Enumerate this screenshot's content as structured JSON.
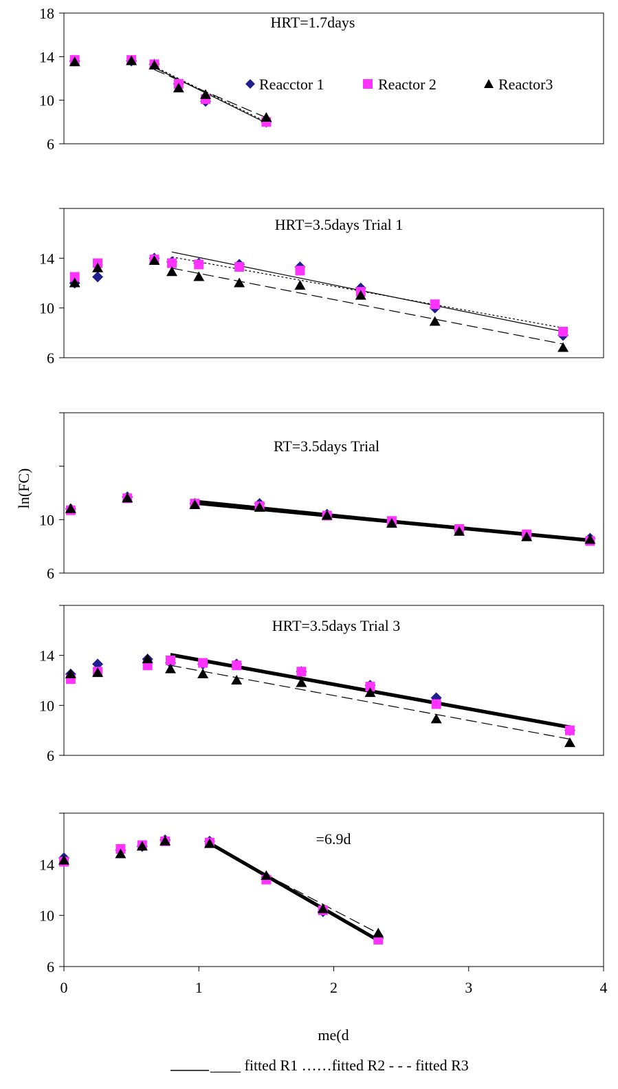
{
  "figure": {
    "ylabel": "ln(FC)",
    "xlabel": "me(d",
    "legend_markers": [
      "Reacctor 1",
      "Reactor 2",
      "Reactor3"
    ],
    "legend_lines": "____ fitted R1 ……fitted R2 - - - fitted R3",
    "colors": {
      "r1": "#1f1f8f",
      "r2": "#ff33ff",
      "r3": "#000000"
    }
  },
  "chart_data": [
    {
      "type": "scatter",
      "title": "HRT=1.7days",
      "xlim": [
        0,
        4
      ],
      "ylim": [
        6,
        18
      ],
      "yticks": [
        6,
        10,
        14,
        18
      ],
      "series": [
        {
          "name": "Reacctor 1",
          "marker": "diamond",
          "x": [
            0.08,
            0.5,
            0.67,
            0.85,
            1.05,
            1.5
          ],
          "y": [
            13.6,
            13.6,
            13.3,
            11.5,
            9.9,
            8.0
          ]
        },
        {
          "name": "Reactor 2",
          "marker": "square",
          "x": [
            0.08,
            0.5,
            0.67,
            0.85,
            1.05,
            1.5
          ],
          "y": [
            13.7,
            13.7,
            13.3,
            11.5,
            10.1,
            8.0
          ]
        },
        {
          "name": "Reactor3",
          "marker": "triangle",
          "x": [
            0.08,
            0.5,
            0.67,
            0.85,
            1.05,
            1.5
          ],
          "y": [
            13.5,
            13.6,
            13.2,
            11.1,
            10.5,
            8.4
          ]
        }
      ],
      "fits": [
        {
          "style": "solid",
          "x": [
            0.67,
            1.5
          ],
          "y": [
            13.0,
            7.9
          ]
        },
        {
          "style": "dotted",
          "x": [
            0.67,
            1.5
          ],
          "y": [
            13.1,
            8.0
          ]
        },
        {
          "style": "dashed",
          "x": [
            0.67,
            1.5
          ],
          "y": [
            12.8,
            8.4
          ]
        }
      ]
    },
    {
      "type": "scatter",
      "title": "HRT=3.5days Trial 1",
      "xlim": [
        0,
        4
      ],
      "ylim": [
        6,
        18
      ],
      "yticks": [
        6,
        10,
        14
      ],
      "series": [
        {
          "name": "Reacctor 1",
          "marker": "diamond",
          "x": [
            0.08,
            0.25,
            0.67,
            0.8,
            1.0,
            1.3,
            1.75,
            2.2,
            2.75,
            3.7
          ],
          "y": [
            12.0,
            12.5,
            14.0,
            13.7,
            13.6,
            13.5,
            13.3,
            11.6,
            10.0,
            7.8
          ]
        },
        {
          "name": "Reactor 2",
          "marker": "square",
          "x": [
            0.08,
            0.25,
            0.67,
            0.8,
            1.0,
            1.3,
            1.75,
            2.2,
            2.75,
            3.7
          ],
          "y": [
            12.5,
            13.6,
            13.9,
            13.6,
            13.5,
            13.3,
            13.0,
            11.3,
            10.3,
            8.1
          ]
        },
        {
          "name": "Reactor3",
          "marker": "triangle",
          "x": [
            0.08,
            0.25,
            0.67,
            0.8,
            1.0,
            1.3,
            1.75,
            2.2,
            2.75,
            3.7
          ],
          "y": [
            12.0,
            13.2,
            13.8,
            12.9,
            12.5,
            12.0,
            11.8,
            11.0,
            8.9,
            6.8
          ]
        }
      ],
      "fits": [
        {
          "style": "solid",
          "x": [
            0.8,
            3.7
          ],
          "y": [
            14.5,
            8.1
          ]
        },
        {
          "style": "dotted",
          "x": [
            0.8,
            3.7
          ],
          "y": [
            14.1,
            8.4
          ]
        },
        {
          "style": "dashed",
          "x": [
            0.8,
            3.7
          ],
          "y": [
            13.2,
            7.1
          ]
        }
      ]
    },
    {
      "type": "scatter",
      "title": "RT=3.5days Trial",
      "xlim": [
        0,
        4
      ],
      "ylim": [
        6,
        18
      ],
      "yticks": [
        6,
        10
      ],
      "series": [
        {
          "name": "Reacctor 1",
          "marker": "diamond",
          "x": [
            0.05,
            0.47,
            0.97,
            1.45,
            1.95,
            2.43,
            2.93,
            3.43,
            3.9
          ],
          "y": [
            10.8,
            11.7,
            11.2,
            11.2,
            10.4,
            9.8,
            9.2,
            8.8,
            8.6
          ]
        },
        {
          "name": "Reactor 2",
          "marker": "square",
          "x": [
            0.05,
            0.47,
            0.97,
            1.45,
            1.95,
            2.43,
            2.93,
            3.43,
            3.9
          ],
          "y": [
            10.7,
            11.6,
            11.2,
            11.0,
            10.3,
            9.9,
            9.3,
            8.9,
            8.4
          ]
        },
        {
          "name": "Reactor3",
          "marker": "triangle",
          "x": [
            0.05,
            0.47,
            0.97,
            1.45,
            1.95,
            2.43,
            2.93,
            3.43,
            3.9
          ],
          "y": [
            10.8,
            11.6,
            11.1,
            10.9,
            10.3,
            9.7,
            9.1,
            8.7,
            8.5
          ]
        }
      ],
      "fits": [
        {
          "style": "solid",
          "x": [
            0.97,
            3.9
          ],
          "y": [
            11.4,
            8.4
          ]
        },
        {
          "style": "solid",
          "x": [
            0.97,
            3.9
          ],
          "y": [
            11.3,
            8.5
          ]
        },
        {
          "style": "solid",
          "x": [
            0.97,
            3.9
          ],
          "y": [
            11.2,
            8.4
          ]
        }
      ]
    },
    {
      "type": "scatter",
      "title": "HRT=3.5days Trial 3",
      "xlim": [
        0,
        4
      ],
      "ylim": [
        6,
        18
      ],
      "yticks": [
        6,
        10,
        14
      ],
      "series": [
        {
          "name": "Reacctor 1",
          "marker": "diamond",
          "x": [
            0.05,
            0.25,
            0.62,
            0.79,
            1.03,
            1.28,
            1.76,
            2.27,
            2.76,
            3.75
          ],
          "y": [
            12.5,
            13.3,
            13.7,
            13.4,
            13.3,
            13.3,
            12.7,
            11.6,
            10.6,
            8.0
          ]
        },
        {
          "name": "Reactor 2",
          "marker": "square",
          "x": [
            0.05,
            0.25,
            0.62,
            0.79,
            1.03,
            1.28,
            1.76,
            2.27,
            2.76,
            3.75
          ],
          "y": [
            12.1,
            12.7,
            13.2,
            13.6,
            13.4,
            13.2,
            12.7,
            11.5,
            10.1,
            8.0
          ]
        },
        {
          "name": "Reactor3",
          "marker": "triangle",
          "x": [
            0.05,
            0.25,
            0.62,
            0.79,
            1.03,
            1.28,
            1.76,
            2.27,
            2.76,
            3.75
          ],
          "y": [
            12.5,
            12.6,
            13.7,
            12.9,
            12.5,
            12.0,
            11.8,
            11.0,
            8.9,
            7.0
          ]
        }
      ],
      "fits": [
        {
          "style": "solid",
          "x": [
            0.79,
            3.75
          ],
          "y": [
            14.1,
            8.3
          ]
        },
        {
          "style": "solid",
          "x": [
            0.79,
            3.75
          ],
          "y": [
            14.0,
            8.2
          ]
        },
        {
          "style": "dashed",
          "x": [
            0.79,
            3.75
          ],
          "y": [
            13.2,
            7.3
          ]
        }
      ]
    },
    {
      "type": "scatter",
      "title": "=6.9d",
      "xlabel": "me(d",
      "xlim": [
        0,
        4
      ],
      "ylim": [
        6,
        18
      ],
      "yticks": [
        6,
        10,
        14
      ],
      "xticks": [
        0,
        1,
        2,
        3,
        4
      ],
      "series": [
        {
          "name": "Reacctor 1",
          "marker": "diamond",
          "x": [
            0.0,
            0.42,
            0.58,
            0.75,
            1.08,
            1.5,
            1.92,
            2.33
          ],
          "y": [
            14.5,
            15.1,
            15.4,
            15.9,
            15.8,
            13.0,
            10.3,
            8.2
          ]
        },
        {
          "name": "Reactor 2",
          "marker": "square",
          "x": [
            0.0,
            0.42,
            0.58,
            0.75,
            1.08,
            1.5,
            1.92,
            2.33
          ],
          "y": [
            14.2,
            15.2,
            15.5,
            15.8,
            15.7,
            12.8,
            10.4,
            8.1
          ]
        },
        {
          "name": "Reactor3",
          "marker": "triangle",
          "x": [
            0.0,
            0.42,
            0.58,
            0.75,
            1.08,
            1.5,
            1.92,
            2.33
          ],
          "y": [
            14.3,
            14.8,
            15.4,
            15.8,
            15.6,
            13.1,
            10.5,
            8.6
          ]
        }
      ],
      "fits": [
        {
          "style": "solid",
          "x": [
            1.08,
            2.33
          ],
          "y": [
            15.6,
            8.0
          ]
        },
        {
          "style": "solid",
          "x": [
            1.08,
            2.33
          ],
          "y": [
            15.7,
            8.1
          ]
        },
        {
          "style": "dashed",
          "x": [
            1.08,
            2.33
          ],
          "y": [
            15.5,
            8.6
          ]
        }
      ]
    }
  ]
}
